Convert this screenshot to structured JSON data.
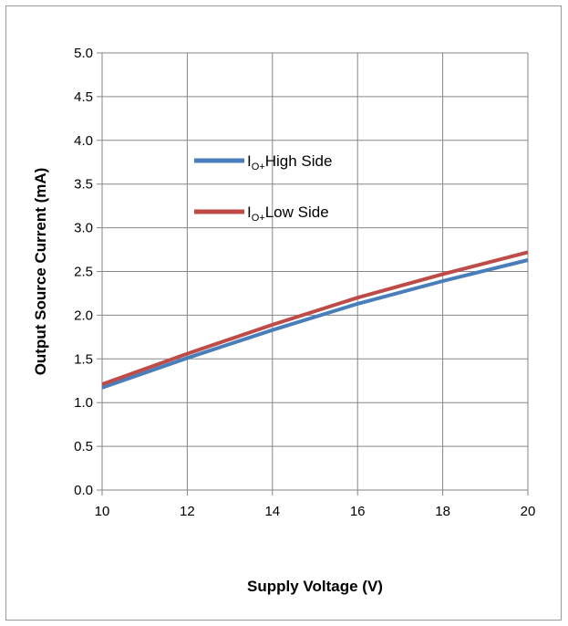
{
  "chart_data": {
    "type": "line",
    "xlabel": "Supply Voltage (V)",
    "ylabel": "Output Source Current (mA)",
    "xlim": [
      10,
      20
    ],
    "ylim": [
      0,
      5
    ],
    "x_ticks": [
      "10",
      "12",
      "14",
      "16",
      "18",
      "20"
    ],
    "y_ticks": [
      "0.0",
      "0.5",
      "1.0",
      "1.5",
      "2.0",
      "2.5",
      "3.0",
      "3.5",
      "4.0",
      "4.5",
      "5.0"
    ],
    "grid": true,
    "legend_position": "upper-left inside plot",
    "series": [
      {
        "name": "I",
        "name_sub": "O+",
        "name_suffix": "High  Side",
        "color": "#4a7ebb",
        "x": [
          10,
          12,
          14,
          16,
          18,
          20
        ],
        "y": [
          1.17,
          1.51,
          1.83,
          2.13,
          2.39,
          2.63
        ]
      },
      {
        "name": "I",
        "name_sub": "O+",
        "name_suffix": "Low Side",
        "color": "#be4b48",
        "x": [
          10,
          12,
          14,
          16,
          18,
          20
        ],
        "y": [
          1.21,
          1.56,
          1.89,
          2.2,
          2.47,
          2.72
        ]
      }
    ]
  }
}
